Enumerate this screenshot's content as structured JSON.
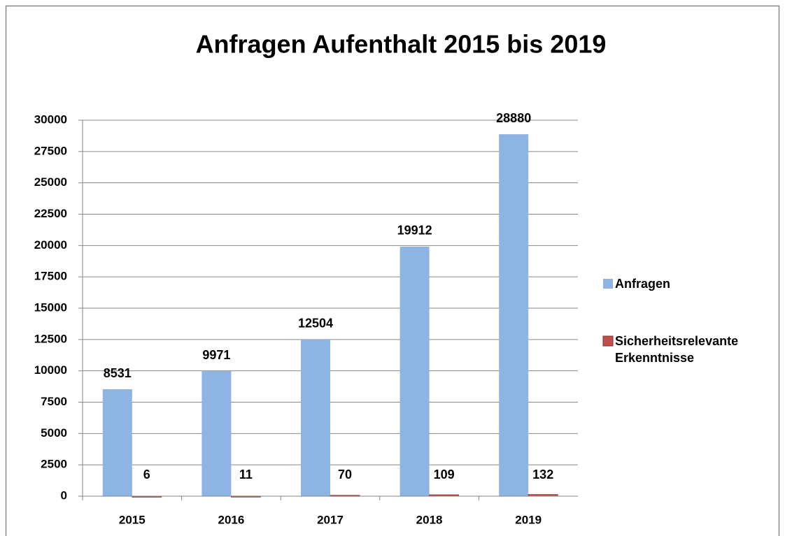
{
  "chart_data": {
    "type": "bar",
    "title": "Anfragen Aufenthalt 2015 bis 2019",
    "categories": [
      "2015",
      "2016",
      "2017",
      "2018",
      "2019"
    ],
    "series": [
      {
        "name": "Anfragen",
        "color": "#8eb4e3",
        "values": [
          8531,
          9971,
          12504,
          19912,
          28880
        ]
      },
      {
        "name": "Sicherheitsrelevante Erkenntnisse",
        "color": "#c0504d",
        "values": [
          6,
          11,
          70,
          109,
          132
        ]
      }
    ],
    "ylim": [
      0,
      30000
    ],
    "yticks": [
      0,
      2500,
      5000,
      7500,
      10000,
      12500,
      15000,
      17500,
      20000,
      22500,
      25000,
      27500,
      30000
    ],
    "grid": true,
    "legend": "right"
  }
}
